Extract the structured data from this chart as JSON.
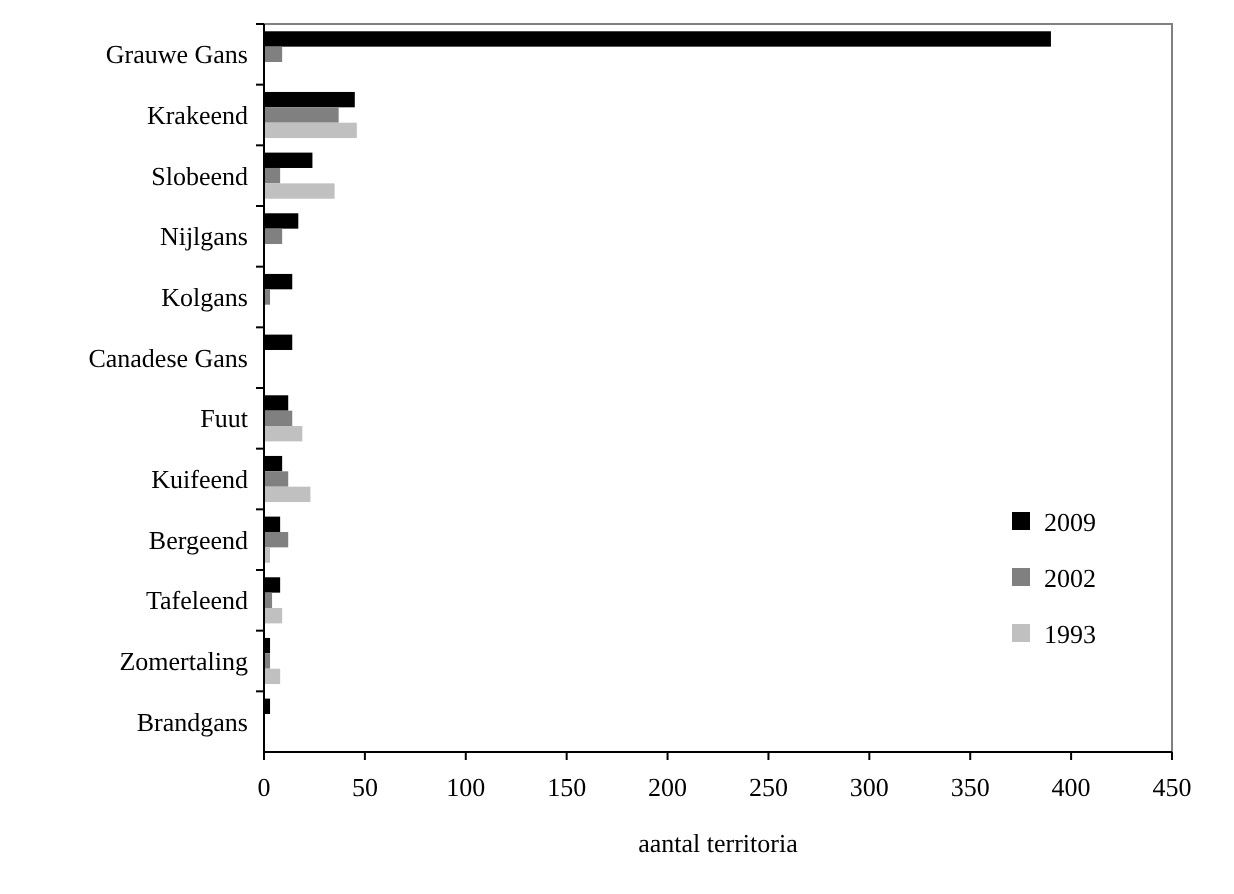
{
  "chart_data": {
    "type": "bar",
    "orientation": "horizontal",
    "xlabel": "aantal territoria",
    "categories": [
      "Grauwe Gans",
      "Krakeend",
      "Slobeend",
      "Nijlgans",
      "Kolgans",
      "Canadese Gans",
      "Fuut",
      "Kuifeend",
      "Bergeend",
      "Tafeleend",
      "Zomertaling",
      "Brandgans"
    ],
    "series": [
      {
        "name": "2009",
        "color": "#000000",
        "values": [
          390,
          45,
          24,
          17,
          14,
          14,
          12,
          9,
          8,
          8,
          3,
          3
        ]
      },
      {
        "name": "2002",
        "color": "#808080",
        "values": [
          9,
          37,
          8,
          9,
          3,
          null,
          14,
          12,
          12,
          4,
          3,
          null
        ]
      },
      {
        "name": "1993",
        "color": "#c0c0c0",
        "values": [
          null,
          46,
          35,
          null,
          null,
          null,
          19,
          23,
          3,
          9,
          8,
          null
        ]
      }
    ],
    "xlim": [
      0,
      450
    ],
    "xticks": [
      0,
      50,
      100,
      150,
      200,
      250,
      300,
      350,
      400,
      450
    ],
    "grid": false,
    "legend": "bottom right"
  }
}
